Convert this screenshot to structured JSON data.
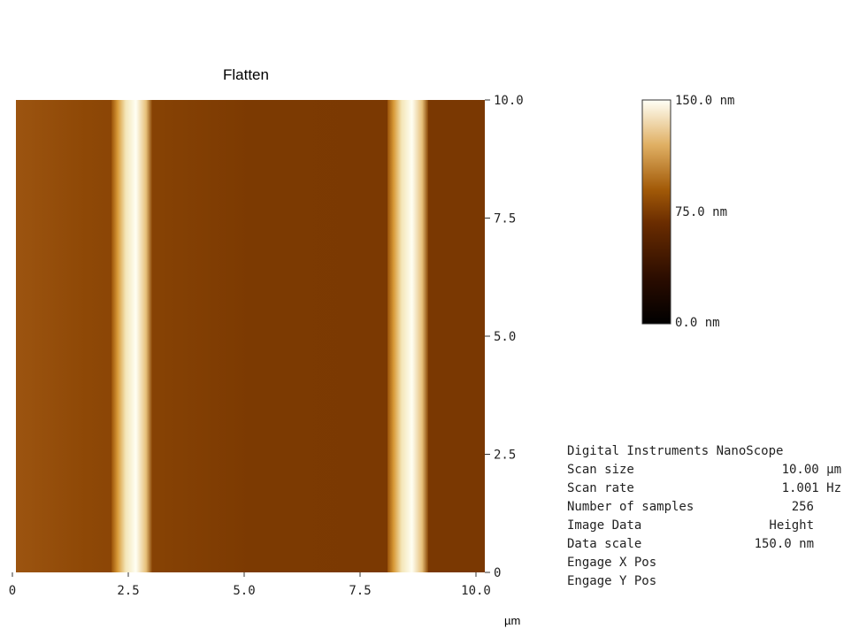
{
  "image": {
    "title": "Flatten",
    "x_ticks": [
      {
        "value": 0,
        "label": "0"
      },
      {
        "value": 2.5,
        "label": "2.5"
      },
      {
        "value": 5,
        "label": "5.0"
      },
      {
        "value": 7.5,
        "label": "7.5"
      },
      {
        "value": 10,
        "label": "10.0"
      }
    ],
    "y_ticks": [
      {
        "value": 10,
        "label": "10.0"
      },
      {
        "value": 7.5,
        "label": "7.5"
      },
      {
        "value": 5,
        "label": "5.0"
      },
      {
        "value": 2.5,
        "label": "2.5"
      },
      {
        "value": 0,
        "label": "0"
      }
    ],
    "x_unit": "µm"
  },
  "color_bar": {
    "labels": [
      "150.0 nm",
      "75.0 nm",
      "0.0 nm"
    ]
  },
  "info": {
    "rows": [
      [
        "Digital Instruments NanoScope"
      ],
      [
        "Scan size",
        "10.00 µm"
      ],
      [
        "Scan rate",
        "1.001 Hz"
      ],
      [
        "Number of samples",
        "256"
      ],
      [
        "Image Data",
        "Height"
      ],
      [
        "Data scale",
        "150.0 nm"
      ],
      [
        "Engage X Pos"
      ],
      [
        "Engage Y Pos"
      ]
    ]
  }
}
